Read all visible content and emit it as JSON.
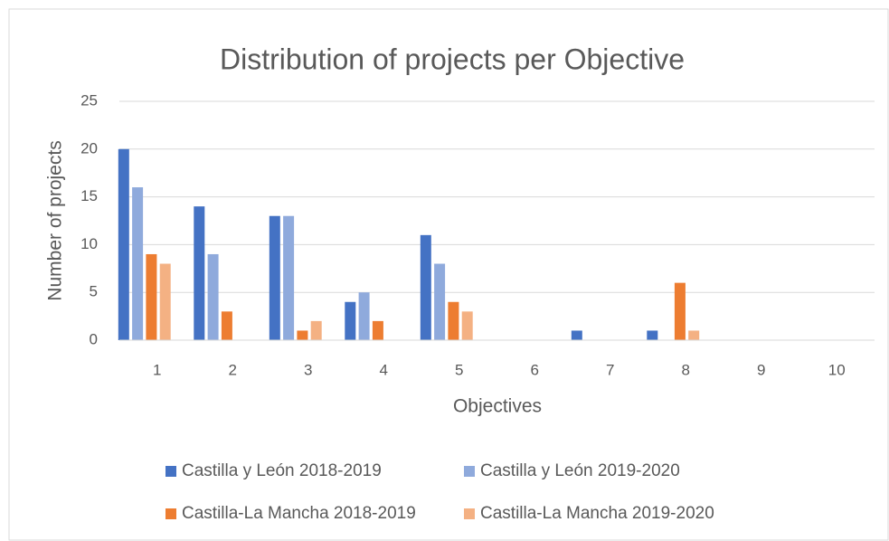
{
  "chart_data": {
    "type": "bar",
    "title": "Distribution of projects per Objective",
    "x_label": "Objectives",
    "y_label": "Number of projects",
    "categories": [
      "1",
      "2",
      "3",
      "4",
      "5",
      "6",
      "7",
      "8",
      "9",
      "10"
    ],
    "series": [
      {
        "name": "Castilla y León 2018-2019",
        "color": "#4472c4",
        "values": [
          20,
          14,
          13,
          4,
          11,
          0,
          1,
          1,
          0,
          0
        ]
      },
      {
        "name": "Castilla y León 2019-2020",
        "color": "#8faadc",
        "values": [
          16,
          9,
          13,
          5,
          8,
          0,
          0,
          0,
          0,
          0
        ]
      },
      {
        "name": "Castilla-La Mancha 2018-2019",
        "color": "#ed7d31",
        "values": [
          9,
          3,
          1,
          2,
          4,
          0,
          0,
          6,
          0,
          0
        ]
      },
      {
        "name": "Castilla-La Mancha 2019-2020",
        "color": "#f4b183",
        "values": [
          8,
          0,
          2,
          0,
          3,
          0,
          0,
          1,
          0,
          0
        ]
      }
    ],
    "ylim": [
      0,
      25
    ],
    "yticks": [
      0,
      5,
      10,
      15,
      20,
      25
    ],
    "grid": true,
    "legend": "bottom"
  }
}
